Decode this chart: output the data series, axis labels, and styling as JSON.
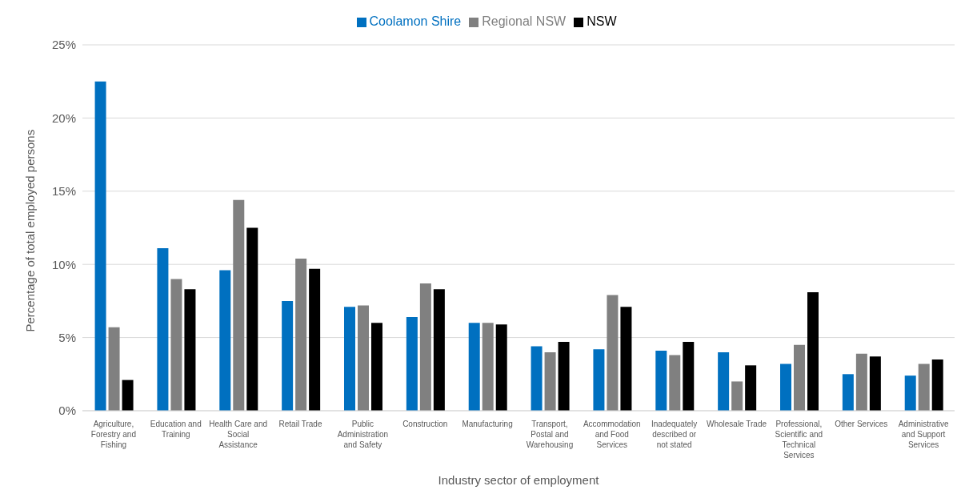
{
  "chart_data": {
    "type": "bar",
    "xlabel": "Industry sector of employment",
    "ylabel": "Percentage of total employed persons",
    "categories": [
      "Agriculture, Forestry and Fishing",
      "Education and Training",
      "Health Care and Social Assistance",
      "Retail Trade",
      "Public Administration and Safety",
      "Construction",
      "Manufacturing",
      "Transport, Postal and Warehousing",
      "Accommodation and Food Services",
      "Inadequately described or not stated",
      "Wholesale Trade",
      "Professional, Scientific and Technical Services",
      "Other Services",
      "Administrative and Support Services"
    ],
    "series": [
      {
        "name": "Coolamon Shire",
        "color": "#0070c0",
        "values": [
          22.5,
          11.1,
          9.6,
          7.5,
          7.1,
          6.4,
          6.0,
          4.4,
          4.2,
          4.1,
          4.0,
          3.2,
          2.5,
          2.4
        ]
      },
      {
        "name": "Regional NSW",
        "color": "#808080",
        "values": [
          5.7,
          9.0,
          14.4,
          10.4,
          7.2,
          8.7,
          6.0,
          4.0,
          7.9,
          3.8,
          2.0,
          4.5,
          3.9,
          3.2
        ]
      },
      {
        "name": "NSW",
        "color": "#000000",
        "values": [
          2.1,
          8.3,
          12.5,
          9.7,
          6.0,
          8.3,
          5.9,
          4.7,
          7.1,
          4.7,
          3.1,
          8.1,
          3.7,
          3.5
        ]
      }
    ],
    "ylim": [
      0,
      25
    ],
    "yticks": [
      {
        "value": 0,
        "label": "0%"
      },
      {
        "value": 5,
        "label": "5%"
      },
      {
        "value": 10,
        "label": "10%"
      },
      {
        "value": 15,
        "label": "15%"
      },
      {
        "value": 20,
        "label": "20%"
      },
      {
        "value": 25,
        "label": "25%"
      }
    ],
    "grid": "y",
    "legend": "top"
  }
}
